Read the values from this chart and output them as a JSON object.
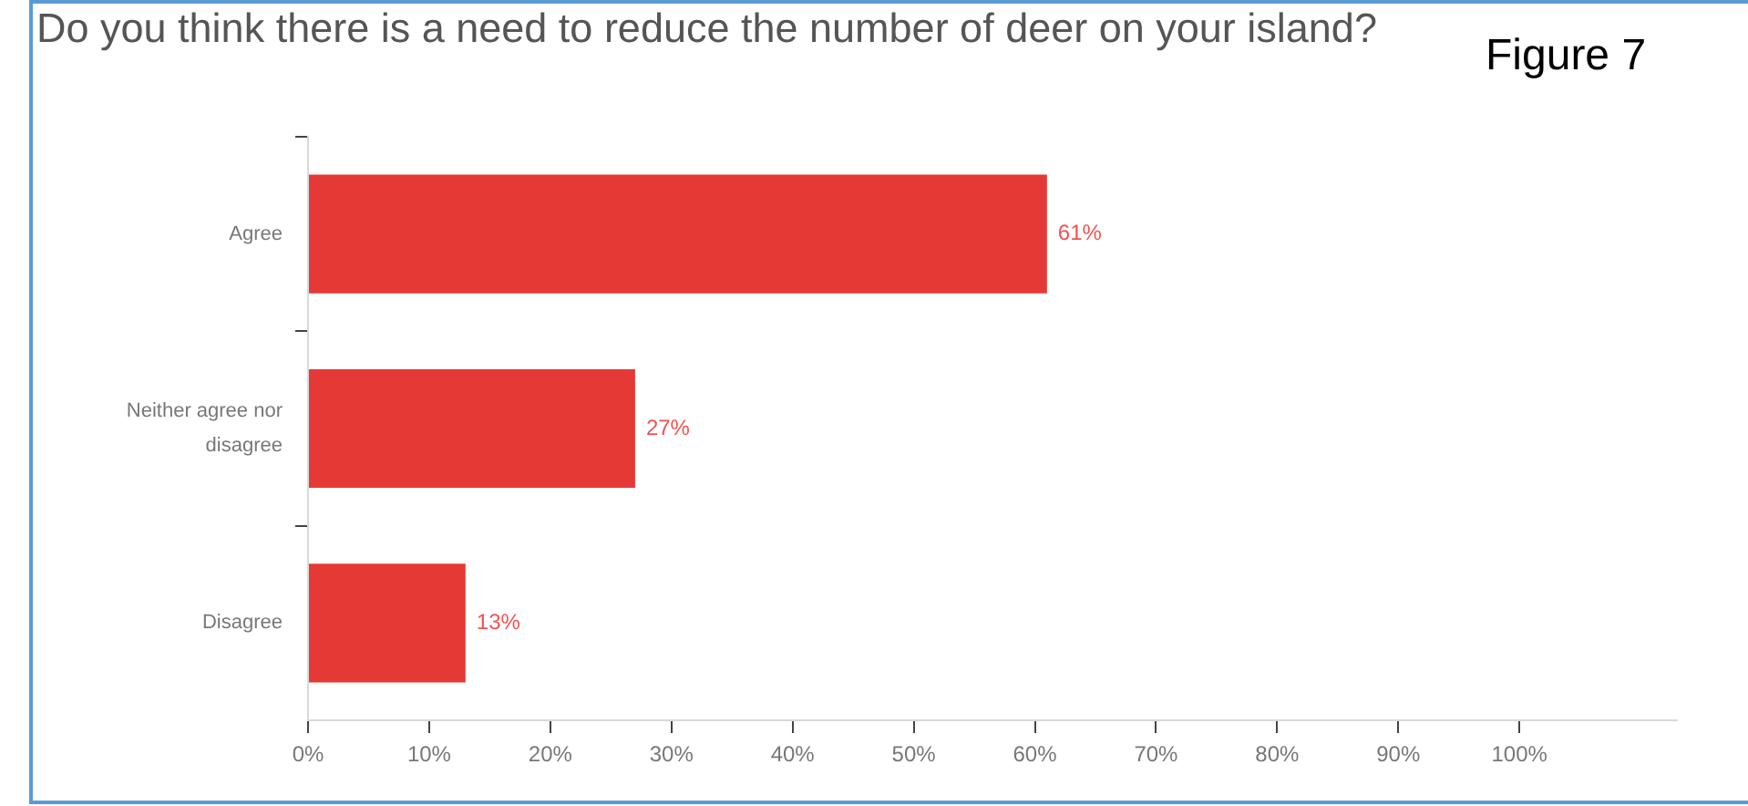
{
  "chart_data": {
    "type": "bar",
    "orientation": "horizontal",
    "title": "Do you think there is a need to reduce the number of deer on your island?",
    "annotations": [
      "Figure 7"
    ],
    "categories": [
      "Agree",
      "Neither agree nor disagree",
      "Disagree"
    ],
    "values": [
      61,
      27,
      13
    ],
    "value_labels": [
      "61%",
      "27%",
      "13%"
    ],
    "color": "#e53935",
    "xlim": [
      0,
      113
    ],
    "xticks": [
      {
        "value": 0,
        "label": "0%"
      },
      {
        "value": 10,
        "label": "10%"
      },
      {
        "value": 20,
        "label": "20%"
      },
      {
        "value": 30,
        "label": "30%"
      },
      {
        "value": 40,
        "label": "40%"
      },
      {
        "value": 50,
        "label": "50%"
      },
      {
        "value": 60,
        "label": "60%"
      },
      {
        "value": 70,
        "label": "70%"
      },
      {
        "value": 80,
        "label": "80%"
      },
      {
        "value": 90,
        "label": "90%"
      },
      {
        "value": 100,
        "label": "100%"
      }
    ]
  }
}
